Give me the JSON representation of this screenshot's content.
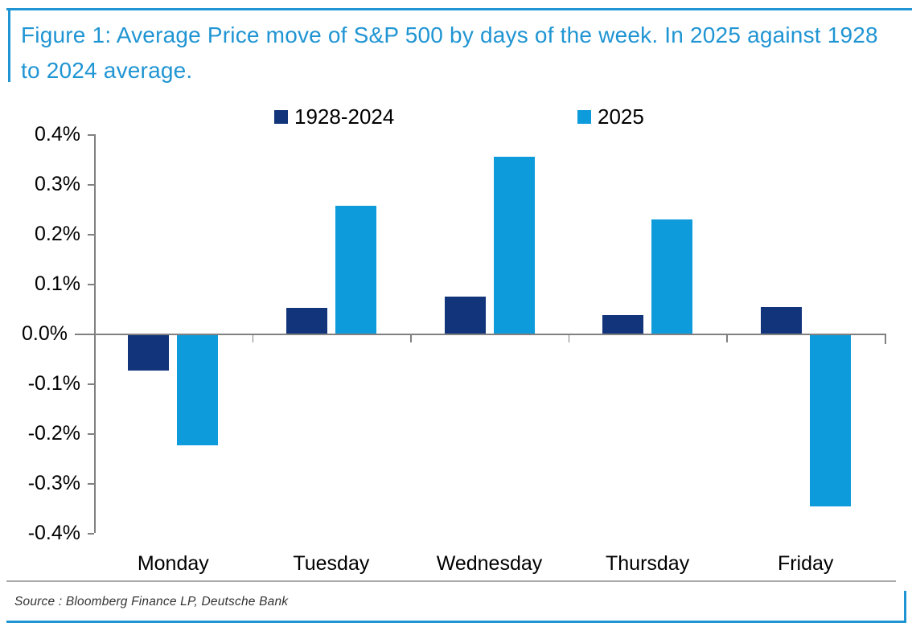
{
  "figure": {
    "source": "Source : Bloomberg Finance LP, Deutsche Bank"
  },
  "colors": {
    "accent_blue": "#2095d3",
    "axis_gray": "#808080",
    "series_1928_2024": "#12347a",
    "series_2025": "#0d9bdb"
  },
  "chart_data": {
    "type": "bar",
    "title": "Figure 1: Average Price move of S&P 500 by days of the week. In 2025 against 1928 to 2024 average.",
    "categories": [
      "Monday",
      "Tuesday",
      "Wednesday",
      "Thursday",
      "Friday"
    ],
    "series": [
      {
        "name": "1928-2024",
        "color": "#12347a",
        "values": [
          -0.072,
          0.051,
          0.074,
          0.037,
          0.053
        ]
      },
      {
        "name": "2025",
        "color": "#0d9bdb",
        "values": [
          -0.222,
          0.257,
          0.355,
          0.229,
          -0.344
        ]
      }
    ],
    "y_tick_labels": [
      "0.4%",
      "0.3%",
      "0.2%",
      "0.1%",
      "0.0%",
      "-0.1%",
      "-0.2%",
      "-0.3%",
      "-0.4%"
    ],
    "ylim": [
      -0.4,
      0.4
    ],
    "value_unit": "percent",
    "xlabel": "",
    "ylabel": "",
    "grid": false,
    "legend_position": "top-center"
  }
}
